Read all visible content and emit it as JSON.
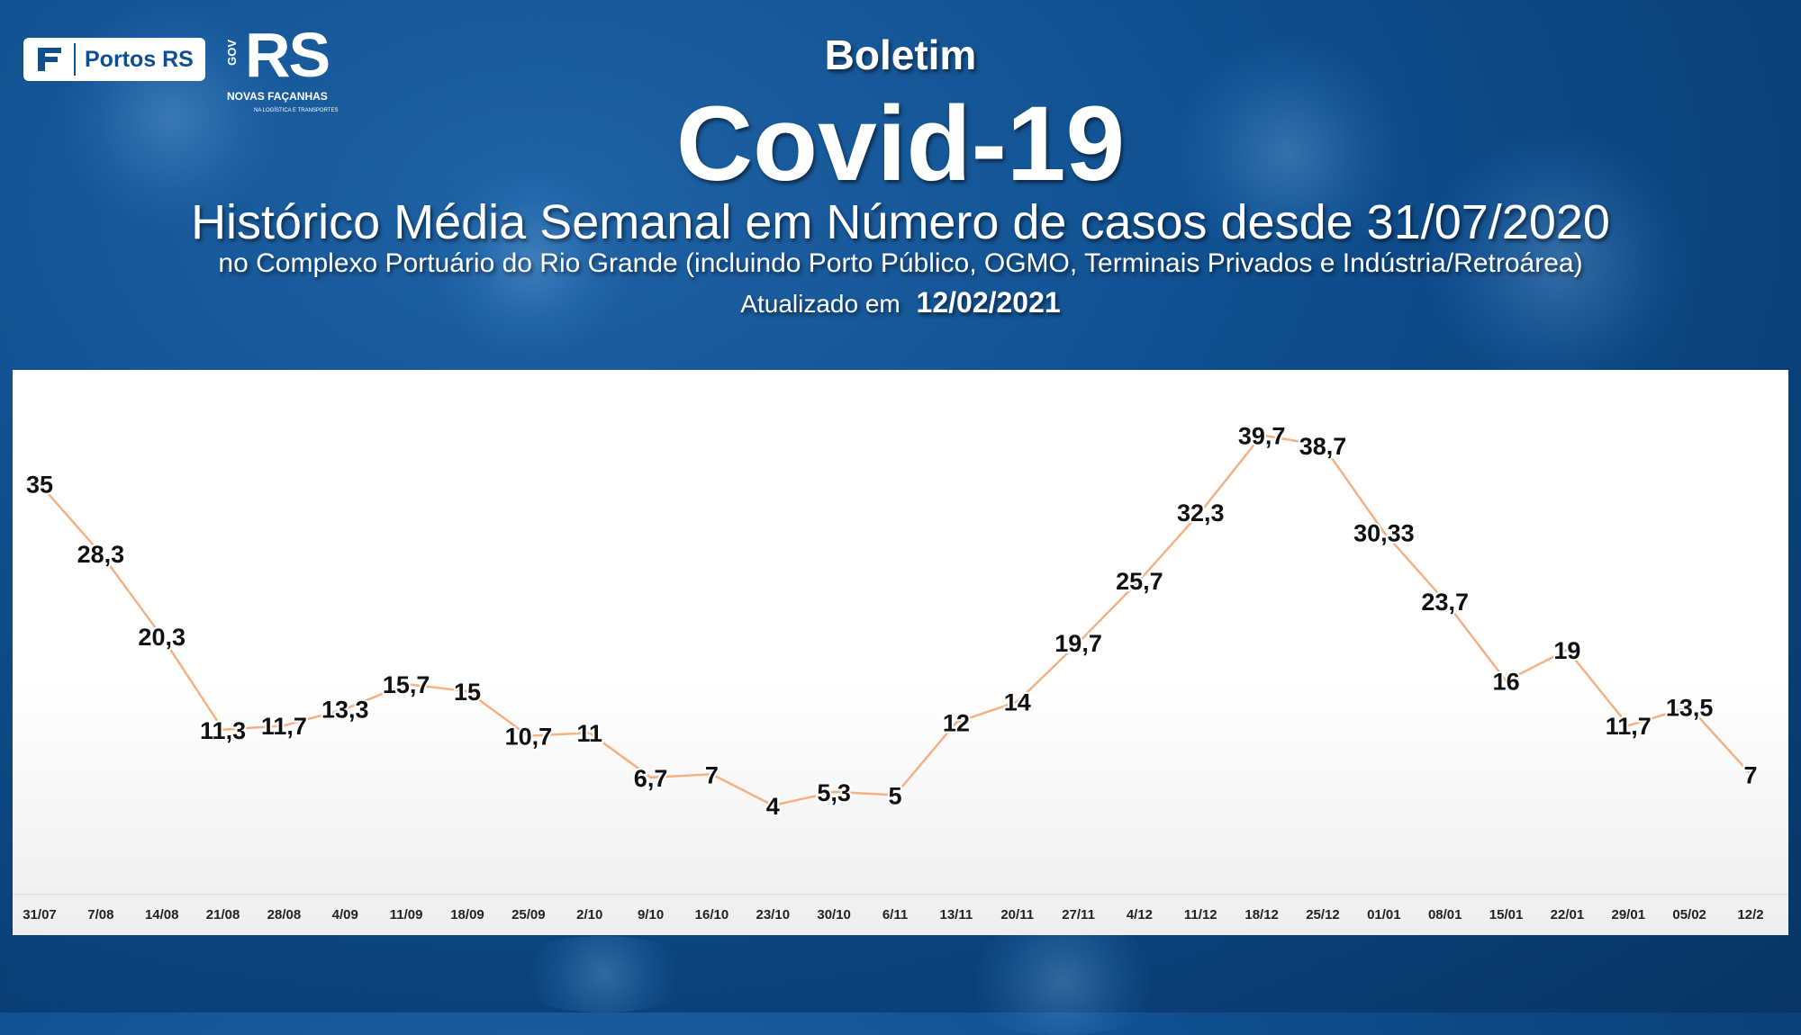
{
  "header": {
    "boletim": "Boletim",
    "title": "Covid-19",
    "subtitle": "Histórico Média Semanal em Número de casos desde 31/07/2020",
    "description": "no Complexo Portuário do Rio Grande (incluindo Porto Público, OGMO, Terminais Privados e Indústria/Retroárea)",
    "updated_label": "Atualizado em",
    "updated_date": "12/02/2021"
  },
  "logos": {
    "portos": "Portos RS",
    "gov_prefix": "GOV",
    "gov_brand": "RS",
    "gov_tagline": "NOVAS FAÇANHAS",
    "gov_sub": "NA LOGÍSTICA E TRANSPORTES"
  },
  "colors": {
    "line": "#f4b183",
    "label": "#111111",
    "background": "#0f4f8f"
  },
  "chart_data": {
    "type": "line",
    "categories": [
      "31/07",
      "7/08",
      "14/08",
      "21/08",
      "28/08",
      "4/09",
      "11/09",
      "18/09",
      "25/09",
      "2/10",
      "9/10",
      "16/10",
      "23/10",
      "30/10",
      "6/11",
      "13/11",
      "20/11",
      "27/11",
      "4/12",
      "11/12",
      "18/12",
      "25/12",
      "01/01",
      "08/01",
      "15/01",
      "22/01",
      "29/01",
      "05/02",
      "12/2"
    ],
    "values": [
      35,
      28.3,
      20.3,
      11.3,
      11.7,
      13.3,
      15.7,
      15,
      10.7,
      11,
      6.7,
      7,
      4,
      5.3,
      5,
      12,
      14,
      19.7,
      25.7,
      32.3,
      39.7,
      38.7,
      30.33,
      23.7,
      16,
      19,
      11.7,
      13.5,
      7
    ],
    "labels": [
      "35",
      "28,3",
      "20,3",
      "11,3",
      "11,7",
      "13,3",
      "15,7",
      "15",
      "10,7",
      "11",
      "6,7",
      "7",
      "4",
      "5,3",
      "5",
      "12",
      "14",
      "19,7",
      "25,7",
      "32,3",
      "39,7",
      "38,7",
      "30,33",
      "23,7",
      "16",
      "19",
      "11,7",
      "13,5",
      "7"
    ],
    "ylim": [
      0,
      42
    ],
    "grid": false,
    "legend": "none"
  }
}
